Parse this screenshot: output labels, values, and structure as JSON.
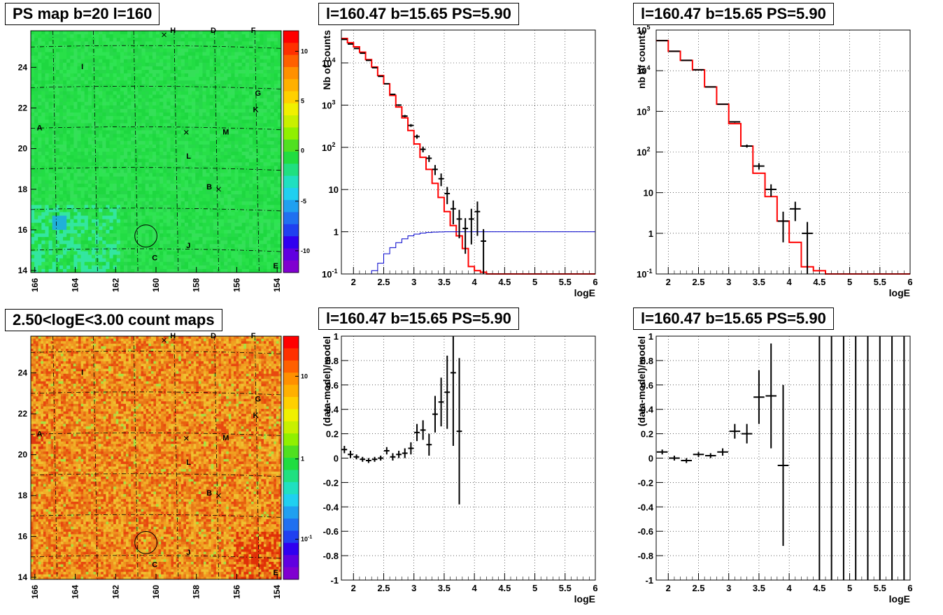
{
  "titles": {
    "ps_map": "PS map b=20 l=160",
    "count_map": "2.50<logE<3.00 count maps",
    "panel_top_mid": "l=160.47 b=15.65 PS=5.90",
    "panel_top_right": "l=160.47 b=15.65 PS=5.90",
    "panel_bot_mid": "l=160.47 b=15.65 PS=5.90",
    "panel_bot_right": "l=160.47 b=15.65 PS=5.90"
  },
  "maps": {
    "x_ticks": [
      "166",
      "164",
      "162",
      "160",
      "158",
      "156",
      "154"
    ],
    "y_ticks": [
      "14",
      "16",
      "18",
      "20",
      "22",
      "24"
    ],
    "source_labels": [
      {
        "name": "H",
        "l": 159.3,
        "b": 25.7
      },
      {
        "name": "D",
        "l": 157.3,
        "b": 25.7
      },
      {
        "name": "F",
        "l": 155.3,
        "b": 25.7
      },
      {
        "name": "I",
        "l": 163.7,
        "b": 23.9
      },
      {
        "name": "G",
        "l": 155.1,
        "b": 22.6
      },
      {
        "name": "K",
        "l": 155.2,
        "b": 21.8
      },
      {
        "name": "A",
        "l": 165.9,
        "b": 20.9
      },
      {
        "name": "M",
        "l": 156.7,
        "b": 20.7
      },
      {
        "name": "L",
        "l": 158.5,
        "b": 19.5
      },
      {
        "name": "B",
        "l": 157.5,
        "b": 18.0
      },
      {
        "name": "J",
        "l": 158.5,
        "b": 15.1
      },
      {
        "name": "C",
        "l": 160.2,
        "b": 14.5
      },
      {
        "name": "E",
        "l": 154.2,
        "b": 14.1
      }
    ],
    "crosses": [
      {
        "l": 159.6,
        "b": 25.6
      },
      {
        "l": 158.5,
        "b": 20.8
      },
      {
        "l": 156.9,
        "b": 18.0
      }
    ],
    "circle": {
      "l": 160.5,
      "b": 15.7,
      "r": 0.55
    },
    "ps_palette_ticks": [
      "10",
      "5",
      "0",
      "-5",
      "-10"
    ],
    "count_palette_ticks": [
      "10",
      "1",
      "10^-1"
    ]
  },
  "colors": {
    "data": "#000000",
    "model": "#ff0000",
    "efficiency": "#0000cc",
    "ps_background": "#22dd44",
    "count_background": "#f09020"
  },
  "chart_data": [
    {
      "type": "line",
      "title": "l=160.47 b=15.65 PS=5.90",
      "xlabel": "logE",
      "ylabel": "Nb of counts",
      "log_y": true,
      "grid": true,
      "xlim": [
        1.8,
        6
      ],
      "ylim": [
        0.1,
        60000
      ],
      "x_ticks": [
        "2",
        "2.5",
        "3",
        "3.5",
        "4",
        "4.5",
        "5",
        "5.5",
        "6"
      ],
      "y_ticks": [
        "10^-1",
        "1",
        "10",
        "10^2",
        "10^3",
        "10^4"
      ],
      "series": [
        {
          "kind": "histogram",
          "color": "red",
          "x": [
            1.8,
            1.9,
            2.0,
            2.1,
            2.2,
            2.3,
            2.4,
            2.5,
            2.6,
            2.7,
            2.8,
            2.9,
            3.0,
            3.1,
            3.2,
            3.3,
            3.4,
            3.5,
            3.6,
            3.7,
            3.8,
            3.9,
            4.0,
            4.1,
            4.2,
            4.3,
            4.4,
            4.5,
            4.6,
            4.7,
            4.8,
            4.9,
            5.0,
            5.1,
            5.2,
            5.3,
            5.4,
            5.5,
            5.6,
            5.7,
            5.8,
            5.9,
            6.0
          ],
          "values": [
            38000,
            30000,
            24000,
            18000,
            12000,
            8000,
            5000,
            3200,
            1700,
            900,
            500,
            250,
            120,
            58,
            30,
            14,
            6.5,
            3,
            1.4,
            0.8,
            0.4,
            0.15,
            0.12,
            0.11,
            0.1,
            0.1,
            0.1,
            0.1,
            0.1,
            0.1,
            0.1,
            0.1,
            0.1,
            0.1,
            0.1,
            0.1,
            0.1,
            0.1,
            0.1,
            0.1,
            0.1,
            0.1
          ]
        },
        {
          "kind": "histogram",
          "color": "blue",
          "x": [
            2.2,
            2.3,
            2.4,
            2.5,
            2.6,
            2.7,
            2.8,
            2.9,
            3.0,
            3.1,
            3.2,
            3.3,
            3.4,
            3.5,
            3.6,
            3.7,
            3.8,
            3.9,
            4.0,
            4.1,
            4.2,
            4.3,
            4.4,
            4.5,
            4.6,
            4.7,
            4.8,
            4.9,
            5.0,
            5.1,
            5.2,
            5.3,
            5.4,
            5.5,
            5.6,
            5.7,
            5.8,
            5.9,
            6.0
          ],
          "values": [
            0.1,
            0.12,
            0.18,
            0.3,
            0.42,
            0.55,
            0.68,
            0.8,
            0.88,
            0.93,
            0.96,
            0.98,
            0.99,
            1,
            1,
            1,
            1,
            1,
            1,
            1,
            1,
            1,
            1,
            1,
            1,
            1,
            1,
            1,
            1,
            1,
            1,
            1,
            1,
            1,
            1,
            1,
            1,
            1
          ]
        },
        {
          "kind": "points",
          "color": "black",
          "x": [
            1.85,
            1.95,
            2.05,
            2.15,
            2.25,
            2.35,
            2.45,
            2.55,
            2.65,
            2.75,
            2.85,
            2.95,
            3.05,
            3.15,
            3.25,
            3.35,
            3.45,
            3.55,
            3.65,
            3.75,
            3.85,
            3.95,
            4.05,
            4.15
          ],
          "values": [
            36000,
            28000,
            22000,
            17000,
            11500,
            7700,
            4800,
            3200,
            1800,
            1000,
            550,
            330,
            180,
            90,
            55,
            30,
            18,
            8,
            3.5,
            2,
            1.2,
            2,
            3,
            0.6
          ],
          "err_low": [
            300,
            260,
            230,
            200,
            160,
            130,
            100,
            80,
            60,
            45,
            35,
            25,
            20,
            14,
            10,
            8,
            6,
            3.5,
            2,
            1.3,
            0.9,
            1.5,
            2.2,
            0.55
          ],
          "err_high": [
            300,
            260,
            230,
            200,
            160,
            130,
            100,
            80,
            60,
            45,
            35,
            25,
            20,
            14,
            10,
            8,
            6,
            3.5,
            2,
            1.3,
            0.9,
            1.5,
            2.2,
            0.55
          ]
        }
      ]
    },
    {
      "type": "line",
      "title": "l=160.47 b=15.65 PS=5.90",
      "xlabel": "logE",
      "ylabel": "nb of counts",
      "log_y": true,
      "grid": true,
      "xlim": [
        1.8,
        6
      ],
      "ylim": [
        0.1,
        100000
      ],
      "x_ticks": [
        "2",
        "2.5",
        "3",
        "3.5",
        "4",
        "4.5",
        "5",
        "5.5",
        "6"
      ],
      "y_ticks": [
        "10^-1",
        "1",
        "10",
        "10^2",
        "10^3",
        "10^4",
        "10^5"
      ],
      "series": [
        {
          "kind": "histogram",
          "color": "red",
          "x": [
            1.8,
            2.0,
            2.2,
            2.4,
            2.6,
            2.8,
            3.0,
            3.2,
            3.4,
            3.6,
            3.8,
            4.0,
            4.2,
            4.4,
            4.6,
            4.8,
            5.0,
            5.2,
            5.4,
            5.6,
            5.8,
            6.0
          ],
          "values": [
            55000,
            30000,
            18000,
            10500,
            4000,
            1500,
            500,
            140,
            30,
            8,
            2,
            0.6,
            0.15,
            0.12,
            0.1,
            0.1,
            0.1,
            0.1,
            0.1,
            0.1,
            0.1
          ]
        },
        {
          "kind": "points",
          "color": "black",
          "x": [
            1.9,
            2.1,
            2.3,
            2.5,
            2.7,
            2.9,
            3.1,
            3.3,
            3.5,
            3.7,
            3.9,
            4.1,
            4.3
          ],
          "values": [
            55000,
            30000,
            18000,
            10500,
            4000,
            1500,
            550,
            140,
            45,
            12,
            2.0,
            4,
            1
          ],
          "err_low": [
            250,
            180,
            140,
            100,
            65,
            40,
            25,
            12,
            8,
            4,
            1.4,
            2,
            0.9
          ],
          "err_high": [
            250,
            180,
            140,
            100,
            65,
            40,
            25,
            12,
            8,
            4,
            1.4,
            2,
            0.9
          ]
        }
      ]
    },
    {
      "type": "scatter",
      "title": "l=160.47 b=15.65 PS=5.90",
      "xlabel": "logE",
      "ylabel": "(data-model)/model",
      "grid": true,
      "xlim": [
        1.8,
        6
      ],
      "ylim": [
        -1,
        1
      ],
      "x_ticks": [
        "2",
        "2.5",
        "3",
        "3.5",
        "4",
        "4.5",
        "5",
        "5.5",
        "6"
      ],
      "y_ticks": [
        "-1",
        "-0.8",
        "-0.6",
        "-0.4",
        "-0.2",
        "0",
        "0.2",
        "0.4",
        "0.6",
        "0.8",
        "1"
      ],
      "series": [
        {
          "kind": "points",
          "color": "black",
          "x": [
            1.85,
            1.95,
            2.05,
            2.15,
            2.25,
            2.35,
            2.45,
            2.55,
            2.65,
            2.75,
            2.85,
            2.95,
            3.05,
            3.15,
            3.25,
            3.35,
            3.45,
            3.55,
            3.65,
            3.75
          ],
          "values": [
            0.07,
            0.03,
            0.01,
            -0.01,
            -0.02,
            -0.01,
            0,
            0.06,
            0.01,
            0.03,
            0.04,
            0.08,
            0.21,
            0.23,
            0.11,
            0.36,
            0.46,
            0.54,
            0.7,
            0.22
          ],
          "err_low": [
            0.03,
            0.03,
            0.02,
            0.02,
            0.02,
            0.02,
            0.02,
            0.03,
            0.03,
            0.03,
            0.04,
            0.05,
            0.07,
            0.08,
            0.09,
            0.15,
            0.2,
            0.3,
            0.6,
            0.6
          ],
          "err_high": [
            0.03,
            0.03,
            0.02,
            0.02,
            0.02,
            0.02,
            0.02,
            0.03,
            0.03,
            0.03,
            0.04,
            0.05,
            0.07,
            0.08,
            0.09,
            0.15,
            0.2,
            0.3,
            0.6,
            0.6
          ]
        }
      ]
    },
    {
      "type": "scatter",
      "title": "l=160.47 b=15.65 PS=5.90",
      "xlabel": "logE",
      "ylabel": "(data-model)/model",
      "grid": true,
      "xlim": [
        1.8,
        6
      ],
      "ylim": [
        -1,
        1
      ],
      "x_ticks": [
        "2",
        "2.5",
        "3",
        "3.5",
        "4",
        "4.5",
        "5",
        "5.5",
        "6"
      ],
      "y_ticks": [
        "-1",
        "-0.8",
        "-0.6",
        "-0.4",
        "-0.2",
        "0",
        "0.2",
        "0.4",
        "0.6",
        "0.8",
        "1"
      ],
      "series": [
        {
          "kind": "points",
          "color": "black",
          "x": [
            1.9,
            2.1,
            2.3,
            2.5,
            2.7,
            2.9,
            3.1,
            3.3,
            3.5,
            3.7,
            3.9
          ],
          "values": [
            0.05,
            0,
            -0.02,
            0.03,
            0.02,
            0.05,
            0.22,
            0.2,
            0.5,
            0.51,
            -0.06
          ],
          "err_low": [
            0.02,
            0.02,
            0.02,
            0.02,
            0.02,
            0.03,
            0.06,
            0.08,
            0.22,
            0.43,
            0.66
          ],
          "err_high": [
            0.02,
            0.02,
            0.02,
            0.02,
            0.02,
            0.03,
            0.06,
            0.08,
            0.22,
            0.43,
            0.66
          ]
        },
        {
          "kind": "vlines",
          "color": "black",
          "x": [
            4.5,
            4.7,
            4.9,
            5.1,
            5.3,
            5.5,
            5.7,
            5.9
          ]
        }
      ]
    }
  ]
}
